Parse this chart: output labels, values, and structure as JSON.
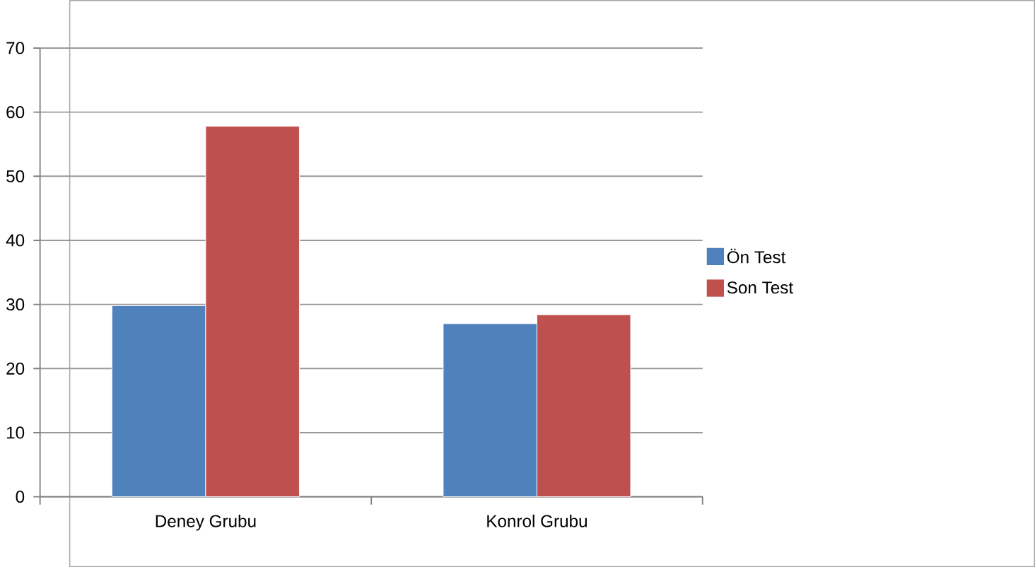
{
  "chart_data": {
    "type": "bar",
    "categories": [
      "Deney Grubu",
      "Konrol Grubu"
    ],
    "series": [
      {
        "name": "Ön Test",
        "color": "#4f81bd",
        "values": [
          29.8,
          27.0
        ]
      },
      {
        "name": "Son Test",
        "color": "#c0504d",
        "values": [
          57.8,
          28.4
        ]
      }
    ],
    "ylim": [
      0,
      70
    ],
    "yticks": [
      0,
      10,
      20,
      30,
      40,
      50,
      60,
      70
    ],
    "grid": "y",
    "legend": "right"
  }
}
